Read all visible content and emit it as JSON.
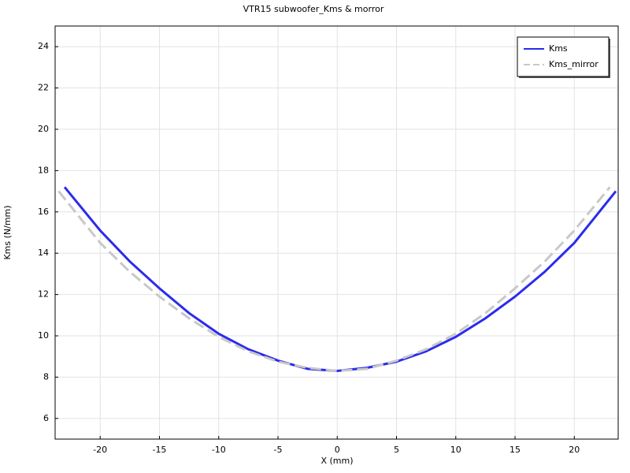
{
  "chart_data": {
    "type": "line",
    "title": "VTR15 subwoofer_Kms & morror",
    "xlabel": "X (mm)",
    "ylabel": "Kms (N/mm)",
    "xlim": [
      -23.8,
      23.7
    ],
    "ylim": [
      5,
      25
    ],
    "xticks": [
      -20,
      -15,
      -10,
      -5,
      0,
      5,
      10,
      15,
      20
    ],
    "yticks": [
      6,
      8,
      10,
      12,
      14,
      16,
      18,
      20,
      22,
      24
    ],
    "grid": true,
    "legend": "upper-right",
    "series": [
      {
        "name": "Kms",
        "color": "#2b2bee",
        "dashed": false,
        "x": [
          -23,
          -20,
          -17.5,
          -15,
          -12.5,
          -10,
          -7.5,
          -5,
          -2.5,
          0,
          2.5,
          5,
          7.5,
          10,
          12.5,
          15,
          17.5,
          20,
          23.5
        ],
        "values": [
          17.2,
          15.1,
          13.6,
          12.3,
          11.1,
          10.1,
          9.35,
          8.8,
          8.4,
          8.3,
          8.45,
          8.75,
          9.25,
          9.95,
          10.85,
          11.9,
          13.1,
          14.5,
          17.0
        ]
      },
      {
        "name": "Kms_mirror",
        "color": "#c8c8c8",
        "dashed": true,
        "x": [
          -23.5,
          -20,
          -17.5,
          -15,
          -12.5,
          -10,
          -7.5,
          -5,
          -2.5,
          0,
          2.5,
          5,
          7.5,
          10,
          12.5,
          15,
          17.5,
          20,
          23
        ],
        "values": [
          17.0,
          14.5,
          13.1,
          11.9,
          10.85,
          9.95,
          9.25,
          8.75,
          8.45,
          8.3,
          8.4,
          8.8,
          9.35,
          10.1,
          11.1,
          12.3,
          13.6,
          15.1,
          17.2
        ]
      }
    ]
  }
}
